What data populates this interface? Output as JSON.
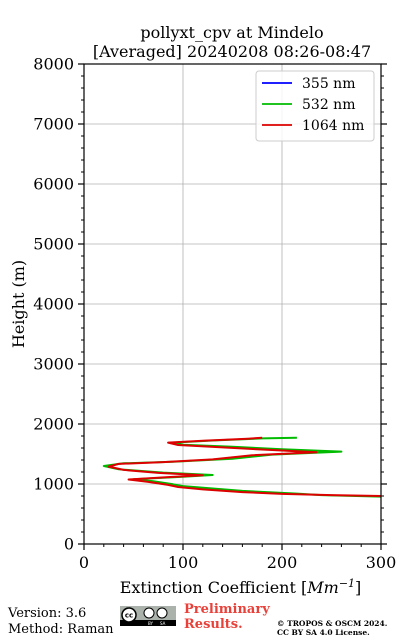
{
  "chart_data": {
    "type": "line",
    "title": "pollyxt_cpv at Mindelo",
    "subtitle": "[Averaged] 20240208 08:26-08:47",
    "xlabel": "Extinction Coefficient [Mm⁻¹]",
    "ylabel": "Height (m)",
    "xlim": [
      0,
      300
    ],
    "ylim": [
      0,
      8000
    ],
    "xticks": [
      0,
      100,
      200,
      300
    ],
    "yticks": [
      0,
      1000,
      2000,
      3000,
      4000,
      5000,
      6000,
      7000,
      8000
    ],
    "grid": true,
    "legend_position": "top-right",
    "series": [
      {
        "name": "355 nm",
        "color": "#0000ff",
        "points": []
      },
      {
        "name": "532 nm",
        "color": "#00bb00",
        "points": [
          [
            300,
            790
          ],
          [
            240,
            815
          ],
          [
            215,
            840
          ],
          [
            160,
            885
          ],
          [
            130,
            925
          ],
          [
            100,
            965
          ],
          [
            90,
            995
          ],
          [
            70,
            1045
          ],
          [
            50,
            1080
          ],
          [
            100,
            1120
          ],
          [
            130,
            1150
          ],
          [
            80,
            1190
          ],
          [
            35,
            1245
          ],
          [
            20,
            1300
          ],
          [
            40,
            1345
          ],
          [
            90,
            1370
          ],
          [
            150,
            1420
          ],
          [
            190,
            1490
          ],
          [
            260,
            1540
          ],
          [
            200,
            1580
          ],
          [
            150,
            1620
          ],
          [
            100,
            1655
          ],
          [
            90,
            1690
          ],
          [
            130,
            1725
          ],
          [
            180,
            1760
          ],
          [
            215,
            1770
          ]
        ]
      },
      {
        "name": "1064 nm",
        "color": "#dd0000",
        "points": [
          [
            300,
            800
          ],
          [
            250,
            815
          ],
          [
            200,
            835
          ],
          [
            160,
            865
          ],
          [
            120,
            910
          ],
          [
            95,
            950
          ],
          [
            85,
            985
          ],
          [
            65,
            1035
          ],
          [
            45,
            1075
          ],
          [
            85,
            1115
          ],
          [
            120,
            1145
          ],
          [
            75,
            1185
          ],
          [
            40,
            1235
          ],
          [
            25,
            1290
          ],
          [
            35,
            1335
          ],
          [
            80,
            1365
          ],
          [
            130,
            1410
          ],
          [
            170,
            1480
          ],
          [
            235,
            1530
          ],
          [
            185,
            1570
          ],
          [
            140,
            1610
          ],
          [
            95,
            1650
          ],
          [
            85,
            1690
          ],
          [
            120,
            1720
          ],
          [
            165,
            1755
          ],
          [
            180,
            1770
          ]
        ]
      }
    ]
  },
  "footer": {
    "version": "Version: 3.6",
    "method": "Method: Raman",
    "preliminary_line1": "Preliminary",
    "preliminary_line2": "Results.",
    "copyright_line1": "© TROPOS & OSCM 2024.",
    "copyright_line2": "CC BY SA 4.0 License."
  },
  "license_badge_text": "cc BY SA"
}
